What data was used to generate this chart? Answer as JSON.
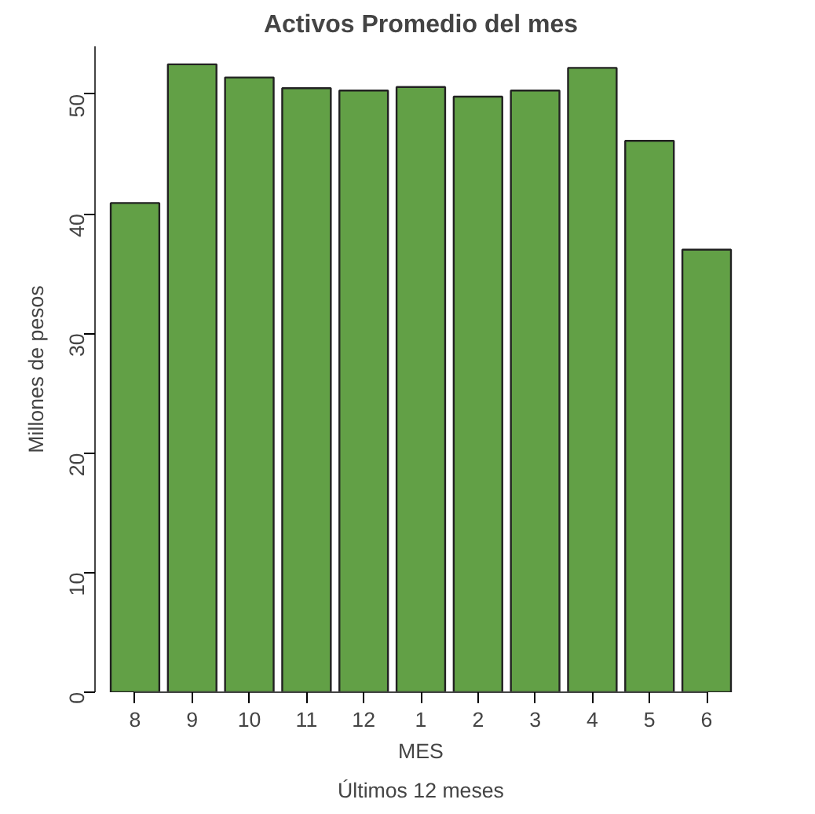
{
  "chart_data": {
    "type": "bar",
    "title": "Activos Promedio del mes",
    "xlabel": "MES",
    "ylabel": "Millones de pesos",
    "annotations": [
      "Últimos 12 meses"
    ],
    "categories": [
      "8",
      "9",
      "10",
      "11",
      "12",
      "1",
      "2",
      "3",
      "4",
      "5",
      "6"
    ],
    "values": [
      40.9,
      52.5,
      51.4,
      50.5,
      50.3,
      50.6,
      49.8,
      50.3,
      52.2,
      46.1,
      37.0
    ],
    "color": "#62a046",
    "ylim": [
      0,
      54
    ],
    "yticks": [
      0,
      10,
      20,
      30,
      40,
      50
    ],
    "grid": false
  }
}
